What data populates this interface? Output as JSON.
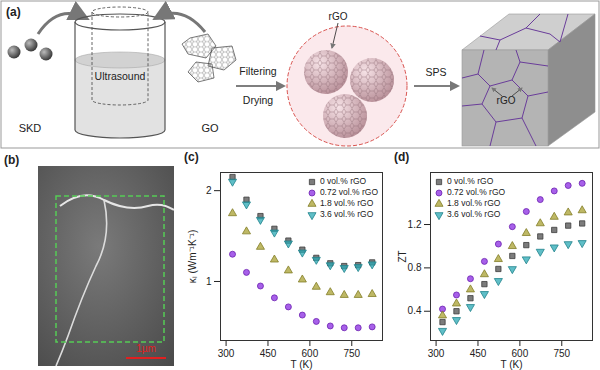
{
  "panels": {
    "a": {
      "label": "(a)",
      "texts": {
        "skd": "SKD",
        "ultrasound": "Ultrasound",
        "go": "GO",
        "rgo_sphere": "rGO",
        "filtering": "Filtering",
        "drying": "Drying",
        "sps": "SPS",
        "rgo_bulk": "rGO"
      }
    },
    "b": {
      "label": "(b)",
      "scale_bar": "1µm"
    }
  },
  "chart_data": [
    {
      "type": "scatter",
      "title": "(c)",
      "x_label": "T (K)",
      "y_label": "κₗ (Wm⁻¹K⁻¹)",
      "x": [
        323,
        373,
        423,
        473,
        523,
        573,
        623,
        673,
        723,
        773,
        823
      ],
      "series": [
        {
          "name": "0 vol.% rGO",
          "color": "#505050",
          "marker": "square",
          "values": [
            2.15,
            1.9,
            1.72,
            1.58,
            1.45,
            1.35,
            1.26,
            1.2,
            1.17,
            1.18,
            1.21
          ]
        },
        {
          "name": "0.72 vol.% rGO",
          "color": "#8a2be2",
          "marker": "circle",
          "values": [
            1.3,
            1.1,
            0.95,
            0.82,
            0.72,
            0.63,
            0.56,
            0.51,
            0.49,
            0.49,
            0.5
          ]
        },
        {
          "name": "1.8 vol.% rGO",
          "color": "#a8a032",
          "marker": "triangle",
          "values": [
            1.75,
            1.55,
            1.38,
            1.24,
            1.12,
            1.02,
            0.94,
            0.88,
            0.85,
            0.85,
            0.86
          ]
        },
        {
          "name": "3.6 vol.% rGO",
          "color": "#2aa8b4",
          "marker": "triangle-down",
          "values": [
            2.1,
            1.85,
            1.68,
            1.54,
            1.42,
            1.32,
            1.24,
            1.18,
            1.15,
            1.16,
            1.19
          ]
        }
      ],
      "xlim": [
        280,
        860
      ],
      "xticks": [
        300,
        450,
        600,
        750
      ],
      "ylim": [
        0.35,
        2.2
      ],
      "yticks": [
        1,
        2
      ],
      "legend": "upper right"
    },
    {
      "type": "scatter",
      "title": "(d)",
      "x_label": "T (K)",
      "y_label": "ZT",
      "x": [
        323,
        373,
        423,
        473,
        523,
        573,
        623,
        673,
        723,
        773,
        823
      ],
      "series": [
        {
          "name": "0 vol.% rGO",
          "color": "#505050",
          "marker": "square",
          "values": [
            0.3,
            0.4,
            0.52,
            0.65,
            0.79,
            0.91,
            1.01,
            1.09,
            1.15,
            1.19,
            1.21
          ]
        },
        {
          "name": "0.72 vol.% rGO",
          "color": "#8a2be2",
          "marker": "circle",
          "values": [
            0.42,
            0.55,
            0.7,
            0.86,
            1.02,
            1.18,
            1.32,
            1.43,
            1.51,
            1.56,
            1.58
          ]
        },
        {
          "name": "1.8 vol.% rGO",
          "color": "#a8a032",
          "marker": "triangle",
          "values": [
            0.36,
            0.47,
            0.6,
            0.74,
            0.88,
            1.0,
            1.12,
            1.21,
            1.27,
            1.31,
            1.33
          ]
        },
        {
          "name": "3.6 vol.% rGO",
          "color": "#2aa8b4",
          "marker": "triangle-down",
          "values": [
            0.22,
            0.32,
            0.44,
            0.56,
            0.68,
            0.79,
            0.88,
            0.95,
            0.99,
            1.02,
            1.03
          ]
        }
      ],
      "xlim": [
        280,
        860
      ],
      "xticks": [
        300,
        450,
        600,
        750
      ],
      "ylim": [
        0.13,
        1.68
      ],
      "yticks": [
        0.4,
        0.8,
        1.2
      ],
      "legend": "upper left"
    }
  ]
}
